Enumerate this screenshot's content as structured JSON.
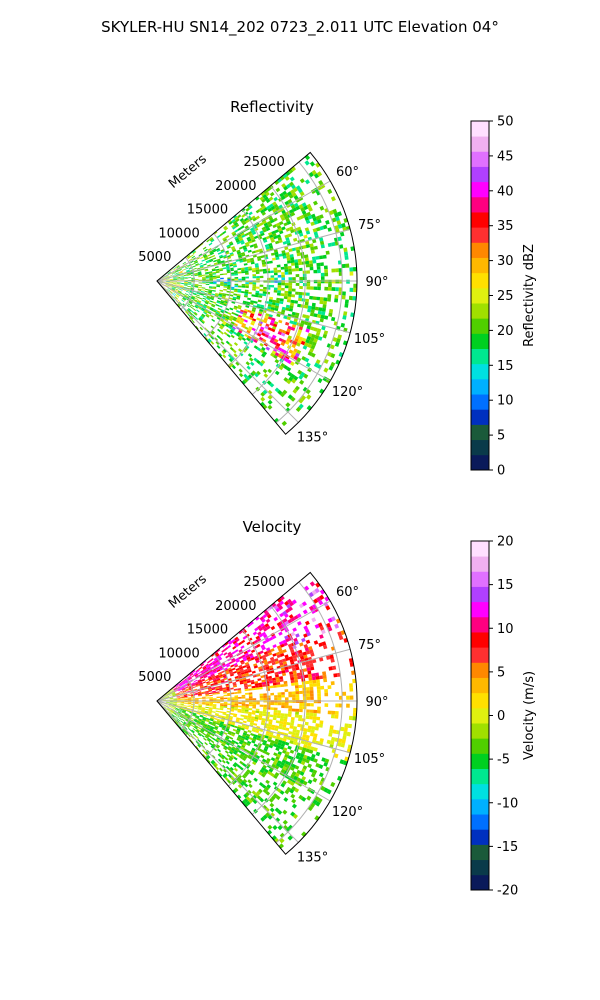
{
  "figure": {
    "title": "SKYLER-HU  SN14_202  0723_2.011 UTC Elevation 04°"
  },
  "chart_data": [
    {
      "type": "heatmap",
      "projection": "polar-sector",
      "title": "Reflectivity",
      "range_label": "Meters",
      "range_ticks": [
        "5000",
        "10000",
        "15000",
        "20000",
        "25000"
      ],
      "range_tick_values": [
        5000,
        10000,
        15000,
        20000,
        25000
      ],
      "rmax": 27000,
      "azimuth_ticks": [
        "60°",
        "75°",
        "90°",
        "105°",
        "120°",
        "135°"
      ],
      "azimuth_tick_values": [
        60,
        75,
        90,
        105,
        120,
        135
      ],
      "azimuth_range": [
        50,
        140
      ],
      "grid": true,
      "colorbar": {
        "label": "Reflectivity dBZ",
        "range": [
          0,
          50
        ],
        "ticks": [
          "0",
          "5",
          "10",
          "15",
          "20",
          "25",
          "30",
          "35",
          "40",
          "45",
          "50"
        ],
        "tick_values": [
          0,
          5,
          10,
          15,
          20,
          25,
          30,
          35,
          40,
          45,
          50
        ],
        "colors": [
          "#0a1a5a",
          "#0a3a4a",
          "#1a5a3a",
          "#0030c0",
          "#0070ff",
          "#00b0ff",
          "#00e0e0",
          "#00e890",
          "#00d020",
          "#50d000",
          "#a0e000",
          "#e0f010",
          "#ffe000",
          "#ffb800",
          "#ff8800",
          "#ff3030",
          "#ff0000",
          "#ff0080",
          "#ff00ff",
          "#b040ff",
          "#e070ff",
          "#f0b0f0",
          "#ffe0ff"
        ]
      }
    },
    {
      "type": "heatmap",
      "projection": "polar-sector",
      "title": "Velocity",
      "range_label": "Meters",
      "range_ticks": [
        "5000",
        "10000",
        "15000",
        "20000",
        "25000"
      ],
      "range_tick_values": [
        5000,
        10000,
        15000,
        20000,
        25000
      ],
      "rmax": 27000,
      "azimuth_ticks": [
        "60°",
        "75°",
        "90°",
        "105°",
        "120°",
        "135°"
      ],
      "azimuth_tick_values": [
        60,
        75,
        90,
        105,
        120,
        135
      ],
      "azimuth_range": [
        50,
        140
      ],
      "grid": true,
      "colorbar": {
        "label": "Velocity (m/s)",
        "range": [
          -20,
          20
        ],
        "ticks": [
          "-20",
          "-15",
          "-10",
          "-5",
          "0",
          "5",
          "10",
          "15",
          "20"
        ],
        "tick_values": [
          -20,
          -15,
          -10,
          -5,
          0,
          5,
          10,
          15,
          20
        ],
        "colors": [
          "#0a1a5a",
          "#0a3a4a",
          "#1a5a3a",
          "#0030c0",
          "#0070ff",
          "#00b0ff",
          "#00e0e0",
          "#00e890",
          "#00d020",
          "#50d000",
          "#a0e000",
          "#e0f010",
          "#ffe000",
          "#ffb800",
          "#ff8800",
          "#ff3030",
          "#ff0000",
          "#ff0080",
          "#ff00ff",
          "#b040ff",
          "#e070ff",
          "#f0b0f0",
          "#ffe0ff"
        ]
      }
    }
  ]
}
